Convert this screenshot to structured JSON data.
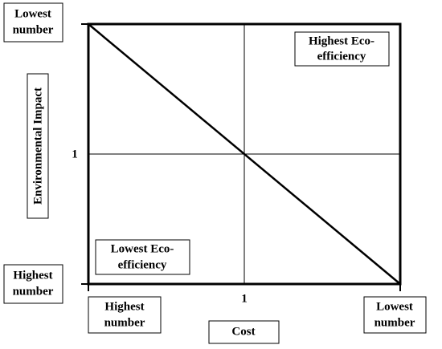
{
  "axes": {
    "y_label": "Environmental Impact",
    "x_label": "Cost",
    "y_mid_tick": "1",
    "x_mid_tick": "1",
    "y_top": [
      "Lowest",
      "number"
    ],
    "y_bottom": [
      "Highest",
      "number"
    ],
    "x_left": [
      "Highest",
      "number"
    ],
    "x_right": [
      "Lowest",
      "number"
    ]
  },
  "quadrants": {
    "top_right": [
      "Highest Eco-",
      "efficiency"
    ],
    "bottom_left": [
      "Lowest Eco-",
      "efficiency"
    ]
  }
}
